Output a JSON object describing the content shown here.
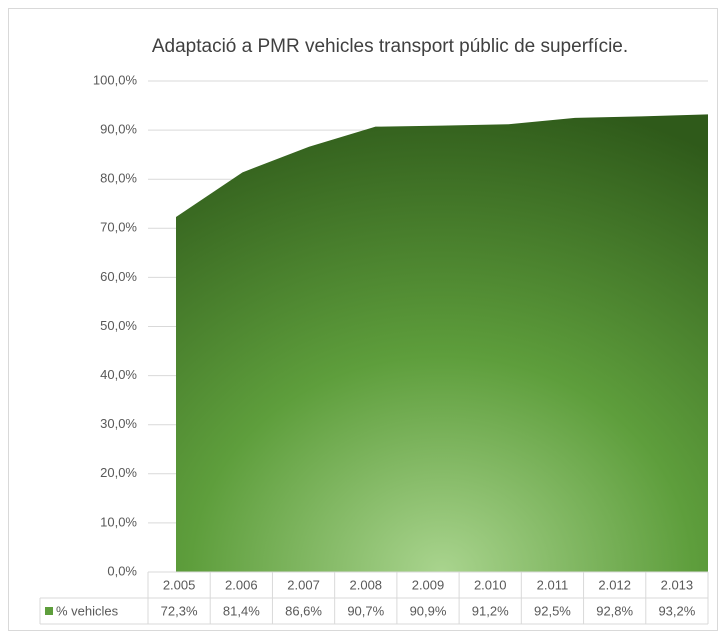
{
  "chart_data": {
    "type": "area",
    "title": "Adaptació a PMR vehicles transport públic de superfície.",
    "categories": [
      "2.005",
      "2.006",
      "2.007",
      "2.008",
      "2.009",
      "2.010",
      "2.011",
      "2.012",
      "2.013"
    ],
    "series": [
      {
        "name": "% vehicles",
        "color": "#5e9e3c",
        "values": [
          72.3,
          81.4,
          86.6,
          90.7,
          90.9,
          91.2,
          92.5,
          92.8,
          93.2
        ],
        "value_labels": [
          "72,3%",
          "81,4%",
          "86,6%",
          "90,7%",
          "90,9%",
          "91,2%",
          "92,5%",
          "92,8%",
          "93,2%"
        ]
      }
    ],
    "ylim": [
      0,
      100
    ],
    "yticks": [
      {
        "value": 0,
        "label": "0,0%"
      },
      {
        "value": 10,
        "label": "10,0%"
      },
      {
        "value": 20,
        "label": "20,0%"
      },
      {
        "value": 30,
        "label": "30,0%"
      },
      {
        "value": 40,
        "label": "40,0%"
      },
      {
        "value": 50,
        "label": "50,0%"
      },
      {
        "value": 60,
        "label": "60,0%"
      },
      {
        "value": 70,
        "label": "70,0%"
      },
      {
        "value": 80,
        "label": "80,0%"
      },
      {
        "value": 90,
        "label": "90,0%"
      },
      {
        "value": 100,
        "label": "100,0%"
      }
    ],
    "grid": true
  }
}
